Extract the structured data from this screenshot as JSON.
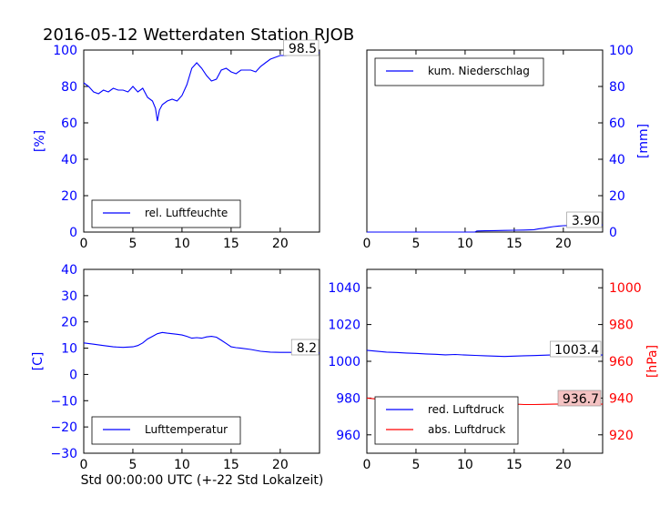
{
  "title": "2016-05-12 Wetterdaten Station RJOB",
  "footer_xlabel": "Std 00:00:00 UTC (+-22 Std Lokalzeit)",
  "colors": {
    "blue": "#0000ff",
    "red": "#ff0000"
  },
  "chart_data": [
    {
      "type": "line",
      "panel": "top-left",
      "ylabel": "[%]",
      "xlim": [
        0,
        24
      ],
      "ylim": [
        0,
        100
      ],
      "xticks": [
        0,
        5,
        10,
        15,
        20
      ],
      "yticks": [
        0,
        20,
        40,
        60,
        80,
        100
      ],
      "legend": "lower-left",
      "annotation": "98.5",
      "series": [
        {
          "name": "rel. Luftfeuchte",
          "color": "#0000ff",
          "x": [
            0,
            0.5,
            1,
            1.5,
            2,
            2.5,
            3,
            3.5,
            4,
            4.5,
            5,
            5.5,
            6,
            6.5,
            7,
            7.3,
            7.5,
            7.7,
            8,
            8.5,
            9,
            9.5,
            10,
            10.5,
            11,
            11.5,
            12,
            12.5,
            13,
            13.5,
            14,
            14.5,
            15,
            15.5,
            16,
            16.5,
            17,
            17.5,
            18,
            18.5,
            19,
            19.5,
            20,
            20.5,
            21,
            21.5,
            22,
            22.5,
            23,
            24
          ],
          "y": [
            82,
            80,
            77,
            76,
            78,
            77,
            79,
            78,
            78,
            77,
            80,
            77,
            79,
            74,
            72,
            68,
            61,
            67,
            70,
            72,
            73,
            72,
            75,
            81,
            90,
            93,
            90,
            86,
            83,
            84,
            89,
            90,
            88,
            87,
            89,
            89,
            89,
            88,
            91,
            93,
            95,
            96,
            97,
            97,
            97.5,
            98,
            98,
            98.2,
            98.4,
            98.5
          ]
        }
      ]
    },
    {
      "type": "line",
      "panel": "top-right",
      "ylabel": "[mm]",
      "xlim": [
        0,
        24
      ],
      "ylim": [
        0,
        100
      ],
      "xticks": [
        0,
        5,
        10,
        15,
        20
      ],
      "yticks": [
        0,
        20,
        40,
        60,
        80,
        100
      ],
      "legend": "upper-left",
      "annotation": "3.90",
      "series": [
        {
          "name": "kum. Niederschlag",
          "color": "#0000ff",
          "x": [
            0,
            5,
            10,
            11,
            11.2,
            12,
            13,
            14,
            15,
            16,
            17,
            17.5,
            18,
            18.5,
            19,
            19.5,
            20,
            21,
            22,
            23,
            24
          ],
          "y": [
            0,
            0,
            0,
            0,
            0.6,
            0.7,
            0.8,
            0.9,
            1.0,
            1.1,
            1.3,
            1.8,
            2.1,
            2.6,
            3.0,
            3.3,
            3.5,
            3.7,
            3.8,
            3.85,
            3.9
          ]
        }
      ]
    },
    {
      "type": "line",
      "panel": "bottom-left",
      "ylabel": "[C]",
      "xlim": [
        0,
        24
      ],
      "ylim": [
        -30,
        40
      ],
      "xticks": [
        0,
        5,
        10,
        15,
        20
      ],
      "yticks": [
        -30,
        -20,
        -10,
        0,
        10,
        20,
        30,
        40
      ],
      "legend": "lower-left",
      "annotation": "8.2",
      "series": [
        {
          "name": "Lufttemperatur",
          "color": "#0000ff",
          "x": [
            0,
            1,
            2,
            3,
            4,
            5,
            5.5,
            6,
            6.5,
            7,
            7.5,
            8,
            8.5,
            9,
            9.5,
            10,
            10.5,
            11,
            11.5,
            12,
            12.5,
            13,
            13.5,
            14,
            14.5,
            15,
            15.5,
            16,
            17,
            18,
            19,
            20,
            21,
            22,
            23,
            24
          ],
          "y": [
            12,
            11.5,
            11,
            10.5,
            10.3,
            10.5,
            11,
            12,
            13.5,
            14.5,
            15.5,
            16,
            15.7,
            15.5,
            15.3,
            15,
            14.5,
            13.8,
            14,
            13.8,
            14.3,
            14.5,
            14.2,
            13,
            11.8,
            10.5,
            10.2,
            10,
            9.5,
            8.8,
            8.5,
            8.4,
            8.4,
            8.3,
            8.2,
            8.2
          ]
        }
      ]
    },
    {
      "type": "line",
      "panel": "bottom-right",
      "ylabel": "[hPa]",
      "xlim": [
        0,
        24
      ],
      "ylim_left": [
        950,
        1050
      ],
      "ylim_right": [
        910,
        1010
      ],
      "xticks": [
        0,
        5,
        10,
        15,
        20
      ],
      "yticks_left": [
        960,
        980,
        1000,
        1020,
        1040
      ],
      "yticks_right": [
        920,
        940,
        960,
        980,
        1000
      ],
      "legend": "lower-left",
      "annotations": [
        "1003.4",
        "936.7"
      ],
      "series": [
        {
          "name": "red. Luftdruck",
          "color": "#0000ff",
          "axis": "left",
          "x": [
            0,
            1,
            2,
            3,
            4,
            5,
            6,
            7,
            8,
            9,
            10,
            11,
            12,
            13,
            14,
            15,
            16,
            17,
            18,
            19,
            20,
            21,
            22,
            23,
            24
          ],
          "y": [
            1006,
            1005.5,
            1005,
            1004.8,
            1004.5,
            1004.3,
            1004,
            1003.8,
            1003.5,
            1003.7,
            1003.4,
            1003.2,
            1003,
            1002.8,
            1002.6,
            1002.8,
            1003,
            1003.1,
            1003.3,
            1003.5,
            1003.6,
            1003.7,
            1003.5,
            1003.4,
            1003.4
          ]
        },
        {
          "name": "abs. Luftdruck",
          "color": "#ff0000",
          "axis": "right",
          "x": [
            0,
            1,
            2,
            3,
            4,
            5,
            6,
            7,
            8,
            9,
            10,
            11,
            12,
            13,
            14,
            15,
            16,
            17,
            18,
            19,
            20,
            21,
            22,
            23,
            24
          ],
          "y": [
            940,
            939.5,
            939,
            938.7,
            938.5,
            938.3,
            938.2,
            938.5,
            938.8,
            938.6,
            938.2,
            937.8,
            937.5,
            937.7,
            937.3,
            936.8,
            936.5,
            936.5,
            936.6,
            936.7,
            936.8,
            936.9,
            936.8,
            936.7,
            936.7
          ]
        }
      ]
    }
  ]
}
